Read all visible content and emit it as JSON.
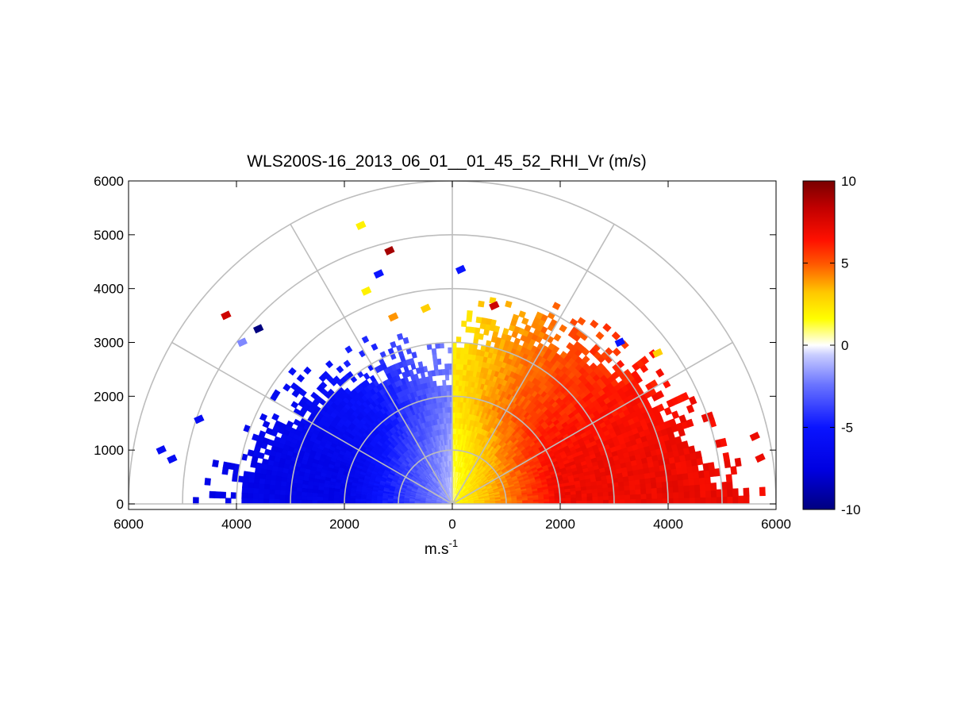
{
  "chart_data": {
    "type": "heatmap",
    "subtype": "RHI polar (range-height indicator)",
    "title": "WLS200S-16_2013_06_01__01_45_52_RHI_Vr (m/s)",
    "xlabel": "m.s",
    "xlabel_sup": "-1",
    "ylabel": "",
    "xlim": [
      -6000,
      6000
    ],
    "ylim": [
      0,
      6000
    ],
    "x_ticks": [
      -6000,
      -4000,
      -2000,
      0,
      2000,
      4000,
      6000
    ],
    "x_tick_labels": [
      "6000",
      "4000",
      "2000",
      "0",
      "2000",
      "4000",
      "6000"
    ],
    "y_ticks": [
      0,
      1000,
      2000,
      3000,
      4000,
      5000,
      6000
    ],
    "y_tick_labels": [
      "0",
      "1000",
      "2000",
      "3000",
      "4000",
      "5000",
      "6000"
    ],
    "polar_grid": {
      "range_rings": [
        1000,
        2000,
        3000,
        4000,
        5000,
        6000
      ],
      "spokes_deg": [
        0,
        30,
        60,
        90,
        120,
        150,
        180
      ]
    },
    "colorbar": {
      "min": -10,
      "max": 10,
      "ticks": [
        10,
        5,
        0,
        -5,
        -10
      ],
      "tick_labels": [
        "10",
        "5",
        "0",
        "-5",
        "-10"
      ],
      "colormap": "blue-white-yellow-red"
    },
    "field_description": {
      "left_half_value_range": [
        -7,
        0
      ],
      "right_half_value_range": [
        0,
        7
      ],
      "max_range_left": 4500,
      "max_range_right": 5500,
      "max_elevation_deg": 90
    },
    "outlier_points": [
      {
        "x": -4200,
        "y": 3500,
        "v": 8
      },
      {
        "x": -3600,
        "y": 3250,
        "v": -10
      },
      {
        "x": -1700,
        "y": 5170,
        "v": 2
      },
      {
        "x": -1170,
        "y": 4700,
        "v": 9
      },
      {
        "x": -1370,
        "y": 4270,
        "v": -5
      },
      {
        "x": -1600,
        "y": 3950,
        "v": 2
      },
      {
        "x": -500,
        "y": 3630,
        "v": 3
      },
      {
        "x": -1100,
        "y": 3470,
        "v": 4
      },
      {
        "x": 150,
        "y": 4350,
        "v": -5
      },
      {
        "x": 770,
        "y": 3680,
        "v": 8
      },
      {
        "x": -3900,
        "y": 3000,
        "v": -2
      },
      {
        "x": 3100,
        "y": 3000,
        "v": -5
      },
      {
        "x": 3800,
        "y": 2800,
        "v": 3
      },
      {
        "x": -4700,
        "y": 1570,
        "v": -6
      },
      {
        "x": -5400,
        "y": 1000,
        "v": -6
      },
      {
        "x": -5200,
        "y": 830,
        "v": -6
      },
      {
        "x": 5700,
        "y": 850,
        "v": 7
      },
      {
        "x": 5600,
        "y": 1250,
        "v": 7
      }
    ]
  }
}
